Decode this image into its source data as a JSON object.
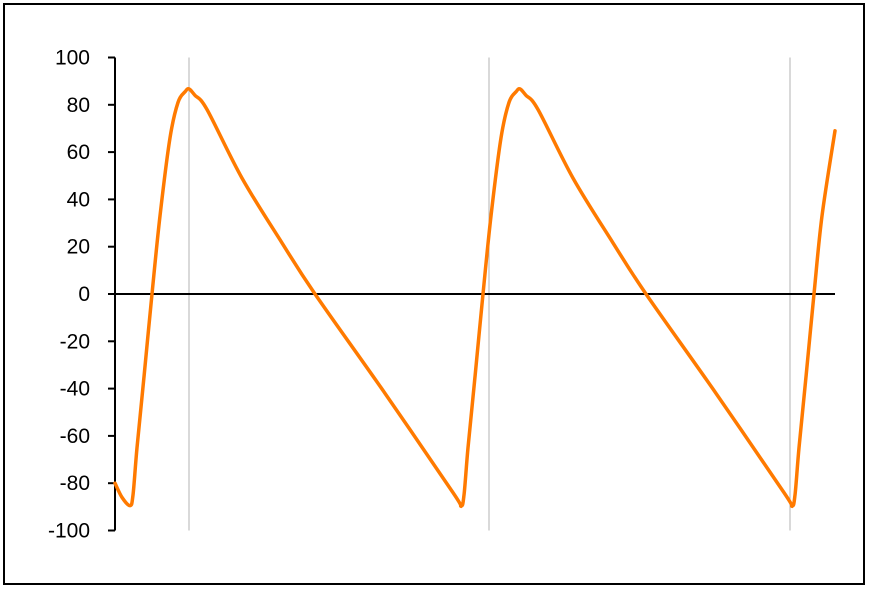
{
  "chart_data": {
    "type": "line",
    "title": "",
    "xlabel": "",
    "ylabel": "",
    "ylim": [
      -100,
      100
    ],
    "xlim": [
      0,
      72
    ],
    "yticks": [
      100,
      80,
      60,
      40,
      20,
      0,
      -20,
      -40,
      -60,
      -80,
      -100
    ],
    "ytick_labels": [
      "100",
      "80",
      "60",
      "40",
      "20",
      "0",
      "-20",
      "-40",
      "-60",
      "-80",
      "-100"
    ],
    "x_gridlines": [
      7.4,
      37.4,
      67.5
    ],
    "grid": "vertical only",
    "legend": "none",
    "series": [
      {
        "color": "#ff7a00",
        "x": [
          0,
          0.7,
          1.5,
          1.8,
          2.2,
          2.9,
          3.7,
          4.5,
          5.5,
          6.3,
          7.0,
          7.4,
          8.0,
          9.2,
          12.7,
          16.7,
          20.0,
          27.0,
          33.8,
          34.6,
          34.9,
          35.3,
          36.0,
          36.8,
          37.6,
          38.6,
          39.4,
          40.1,
          40.5,
          41.1,
          42.3,
          45.8,
          49.8,
          53.1,
          60.1,
          66.9,
          67.7,
          68.0,
          68.4,
          69.1,
          69.9,
          70.7,
          72.0
        ],
        "y": [
          -80,
          -86,
          -89.5,
          -85,
          -65,
          -35,
          0,
          33,
          66,
          81,
          85.5,
          86.7,
          84,
          78,
          49,
          21.6,
          0,
          -42,
          -84,
          -89.5,
          -85,
          -65,
          -35,
          0,
          33,
          66,
          81,
          85.5,
          86.7,
          84,
          78,
          49,
          21.6,
          0,
          -42,
          -84,
          -89.5,
          -85,
          -65,
          -35,
          0,
          33,
          69
        ]
      }
    ],
    "colors": {
      "line": "#ff7a00",
      "axis": "#000000",
      "grid": "#b3b3b3"
    }
  }
}
